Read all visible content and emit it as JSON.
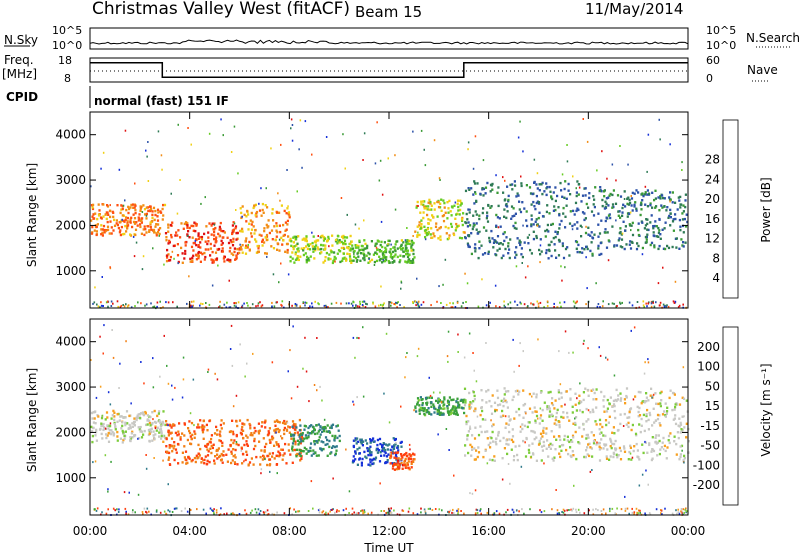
{
  "header": {
    "station": "Christmas Valley West (fitACF)",
    "beam": "Beam 15",
    "date": "11/May/2014"
  },
  "top_panels": {
    "nsky_label": "N.Sky",
    "nsky_ticks": [
      "10^5",
      "10^0"
    ],
    "nsearch_label": "N.Search",
    "freq_label": "Freq.",
    "freq_unit": "[MHz]",
    "freq_ticks": [
      "18",
      "8"
    ],
    "nave_label": "Nave",
    "nave_ticks": [
      "60",
      "0"
    ],
    "cpid_label": "CPID",
    "cpid_text": "normal (fast) 151 IF"
  },
  "chart_data": [
    {
      "type": "line",
      "name": "frequency",
      "title": "",
      "xlabel": "",
      "ylabel": "Freq. [MHz]",
      "xlim": [
        0,
        24
      ],
      "ylim": [
        8,
        18
      ],
      "x": [
        0,
        2.9,
        2.9,
        15,
        15,
        24
      ],
      "values": [
        16,
        16,
        10,
        10,
        16,
        16
      ]
    },
    {
      "type": "heatmap",
      "title": "",
      "xlabel": "Time UT",
      "ylabel": "Slant Range [km]",
      "x_ticks": [
        "00:00",
        "04:00",
        "08:00",
        "12:00",
        "16:00",
        "20:00",
        "00:00"
      ],
      "y_ticks": [
        "1000",
        "2000",
        "3000",
        "4000"
      ],
      "xlim": [
        0,
        24
      ],
      "ylim": [
        180,
        4500
      ],
      "colorbar": {
        "label": "Power [dB]",
        "ticks": [
          "4",
          "8",
          "12",
          "16",
          "20",
          "24",
          "28"
        ],
        "colors": [
          "#1530d8",
          "#2c52a8",
          "#2e7a55",
          "#3a9a35",
          "#66cc22",
          "#f0d015",
          "#f28d15",
          "#ff5010",
          "#e01010"
        ]
      },
      "echo_bands": [
        {
          "t0": 0.0,
          "t1": 3.0,
          "r0": 1800,
          "r1": 2500,
          "level": 0.8
        },
        {
          "t0": 3.0,
          "t1": 6.0,
          "r0": 1200,
          "r1": 2100,
          "level": 0.9
        },
        {
          "t0": 6.0,
          "t1": 8.0,
          "r0": 1400,
          "r1": 2500,
          "level": 0.75
        },
        {
          "t0": 8.0,
          "t1": 10.5,
          "r0": 1200,
          "r1": 1800,
          "level": 0.55
        },
        {
          "t0": 10.5,
          "t1": 13.0,
          "r0": 1200,
          "r1": 1700,
          "level": 0.45
        },
        {
          "t0": 13.0,
          "t1": 15.0,
          "r0": 1700,
          "r1": 2600,
          "level": 0.6
        },
        {
          "t0": 15.0,
          "t1": 20.5,
          "r0": 1300,
          "r1": 3000,
          "level": 0.2
        },
        {
          "t0": 20.5,
          "t1": 24.0,
          "r0": 1500,
          "r1": 2800,
          "level": 0.22
        }
      ]
    },
    {
      "type": "heatmap",
      "title": "",
      "xlabel": "Time UT",
      "ylabel": "Slant Range [km]",
      "x_ticks": [
        "00:00",
        "04:00",
        "08:00",
        "12:00",
        "16:00",
        "20:00",
        "00:00"
      ],
      "y_ticks": [
        "1000",
        "2000",
        "3000",
        "4000"
      ],
      "xlim": [
        0,
        24
      ],
      "ylim": [
        180,
        4500
      ],
      "colorbar": {
        "label": "Velocity [m s⁻¹]",
        "ticks": [
          "200",
          "100",
          "50",
          "15",
          "-15",
          "-50",
          "-100",
          "-200"
        ],
        "colors": [
          "#1530d8",
          "#2f7a8a",
          "#3aa03a",
          "#7ccc3a",
          "#c8c8c4",
          "#f7a020",
          "#f28015",
          "#ff4010",
          "#e01010"
        ]
      },
      "echo_bands": [
        {
          "t0": 0.0,
          "t1": 3.0,
          "r0": 1800,
          "r1": 2500,
          "level": 0.0
        },
        {
          "t0": 3.0,
          "t1": 8.5,
          "r0": 1300,
          "r1": 2300,
          "level": -0.6
        },
        {
          "t0": 8.0,
          "t1": 10.0,
          "r0": 1500,
          "r1": 2200,
          "level": 0.6
        },
        {
          "t0": 10.5,
          "t1": 12.5,
          "r0": 1300,
          "r1": 1900,
          "level": 0.9
        },
        {
          "t0": 12.0,
          "t1": 13.0,
          "r0": 1200,
          "r1": 1600,
          "level": -0.7
        },
        {
          "t0": 13.0,
          "t1": 15.0,
          "r0": 2400,
          "r1": 2800,
          "level": 0.5
        },
        {
          "t0": 15.0,
          "t1": 24.0,
          "r0": 1400,
          "r1": 3000,
          "level": 0.0
        }
      ]
    }
  ]
}
